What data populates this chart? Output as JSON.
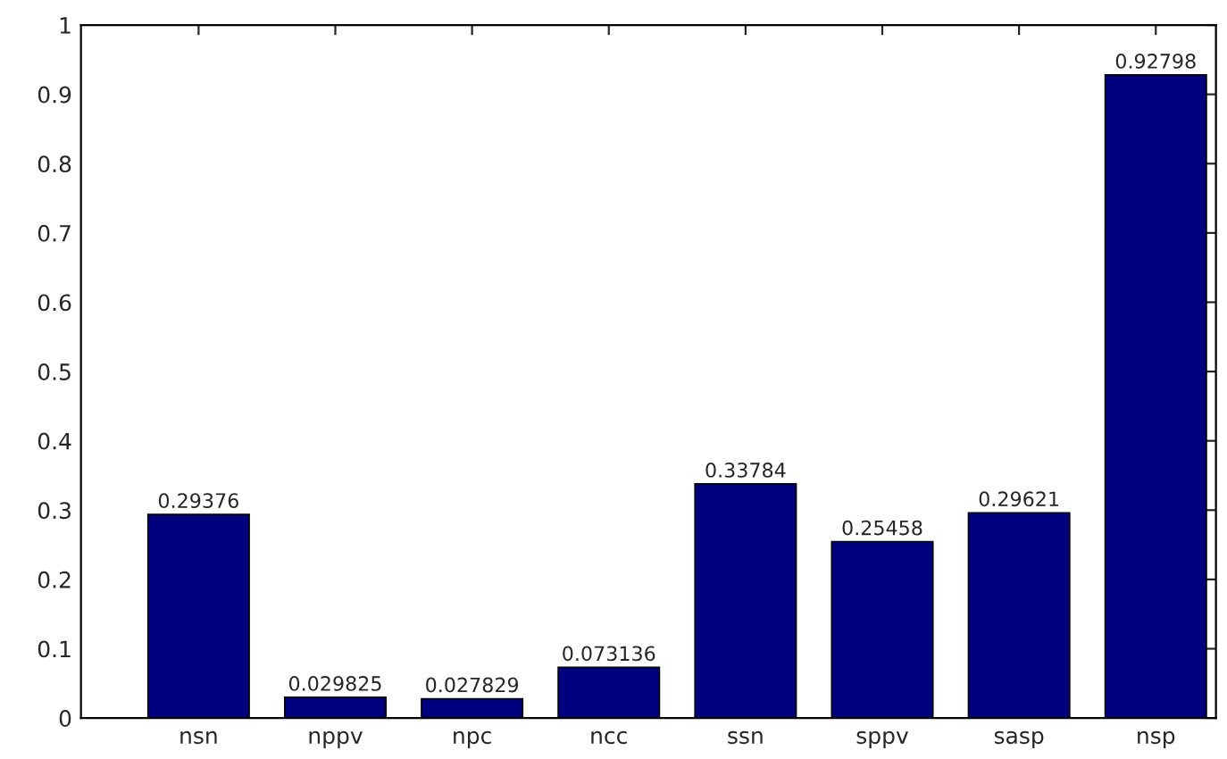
{
  "chart_data": {
    "type": "bar",
    "categories": [
      "nsn",
      "nppv",
      "npc",
      "ncc",
      "ssn",
      "sppv",
      "sasp",
      "nsp"
    ],
    "values": [
      0.29376,
      0.029825,
      0.027829,
      0.073136,
      0.33784,
      0.25458,
      0.29621,
      0.92798
    ],
    "color": "#00007f",
    "ylim": [
      0,
      1
    ],
    "yticks": [
      0,
      0.1,
      0.2,
      0.3,
      0.4,
      0.5,
      0.6,
      0.7,
      0.8,
      0.9,
      1
    ],
    "data_labels": true,
    "grid": false,
    "legend": false
  }
}
